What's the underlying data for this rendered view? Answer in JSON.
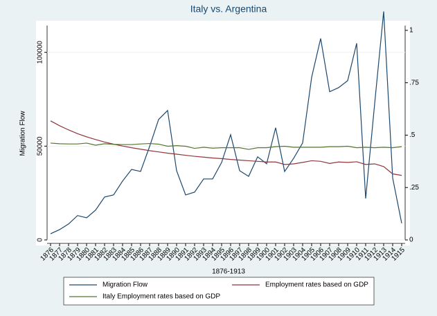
{
  "chart_data": {
    "type": "line",
    "title": "Italy vs. Argentina",
    "xlabel": "1876-1913",
    "ylabel": "Migration Flow",
    "categories": [
      "1876",
      "1877",
      "1878",
      "1879",
      "1880",
      "1881",
      "1882",
      "1883",
      "1884",
      "1885",
      "1886",
      "1887",
      "1888",
      "1889",
      "1890",
      "1891",
      "1892",
      "1893",
      "1894",
      "1895",
      "1896",
      "1897",
      "1898",
      "1899",
      "1900",
      "1901",
      "1902",
      "1903",
      "1904",
      "1905",
      "1906",
      "1907",
      "1908",
      "1909",
      "1910",
      "1911",
      "1912",
      "1913",
      "1914",
      "1915"
    ],
    "series": [
      {
        "name": "Migration Flow",
        "color": "#1a476f",
        "axis": "y",
        "values": [
          3300,
          5500,
          8500,
          13000,
          11800,
          15900,
          22900,
          24000,
          31400,
          37600,
          36500,
          49800,
          64200,
          69000,
          36900,
          24000,
          25500,
          32500,
          32500,
          41300,
          56100,
          36900,
          33900,
          44300,
          40600,
          59800,
          36500,
          43500,
          51700,
          86700,
          107400,
          79000,
          81200,
          84900,
          104800,
          22100,
          72700,
          121800,
          33000,
          8900
        ]
      },
      {
        "name": "Employment rates based on GDP",
        "color": "#90353b",
        "axis": "y2",
        "values": [
          0.568,
          0.545,
          0.525,
          0.507,
          0.492,
          0.479,
          0.467,
          0.457,
          0.448,
          0.44,
          0.433,
          0.426,
          0.42,
          0.414,
          0.409,
          0.404,
          0.399,
          0.395,
          0.391,
          0.388,
          0.384,
          0.381,
          0.378,
          0.375,
          0.372,
          0.372,
          0.36,
          0.363,
          0.37,
          0.378,
          0.375,
          0.365,
          0.372,
          0.37,
          0.373,
          0.36,
          0.363,
          0.35,
          0.315,
          0.308
        ]
      },
      {
        "name": "Italy Employment rates based on GDP",
        "color": "#55752f",
        "axis": "y2",
        "values": [
          0.462,
          0.459,
          0.458,
          0.458,
          0.462,
          0.452,
          0.459,
          0.456,
          0.455,
          0.455,
          0.458,
          0.46,
          0.457,
          0.447,
          0.45,
          0.447,
          0.437,
          0.442,
          0.438,
          0.44,
          0.44,
          0.44,
          0.432,
          0.44,
          0.44,
          0.445,
          0.447,
          0.442,
          0.442,
          0.442,
          0.442,
          0.445,
          0.445,
          0.447,
          0.44,
          0.442,
          0.44,
          0.442,
          0.44,
          0.445
        ]
      }
    ],
    "ylim": [
      0,
      122000
    ],
    "yticks": [
      0,
      50000,
      100000
    ],
    "y2lim": [
      0,
      1.092
    ],
    "y2ticks": [
      0,
      {
        "value": 0.25,
        "label": ".25"
      },
      {
        "value": 0.5,
        "label": ".5"
      },
      {
        "value": 0.75,
        "label": ".75"
      },
      1
    ],
    "grid": true
  }
}
